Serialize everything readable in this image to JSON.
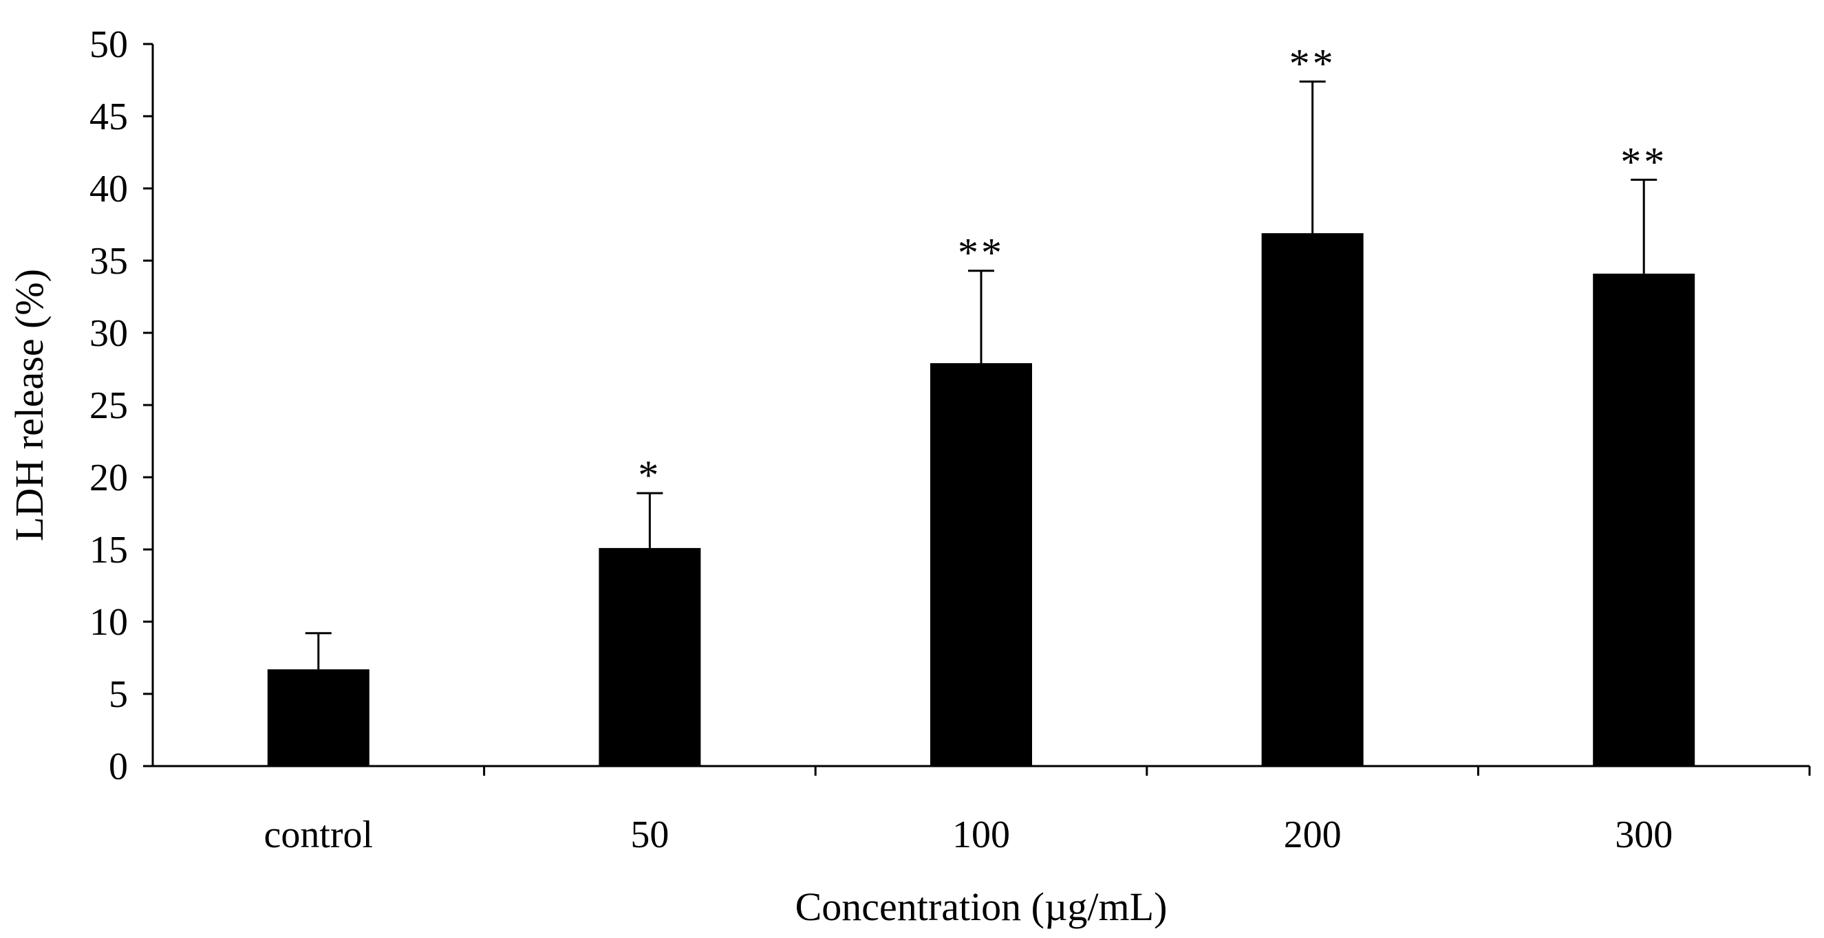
{
  "chart_data": {
    "type": "bar",
    "title": "",
    "xlabel": "Concentration (µg/mL)",
    "ylabel": "LDH release (%)",
    "categories": [
      "control",
      "50",
      "100",
      "200",
      "300"
    ],
    "values": [
      6.7,
      15.1,
      27.9,
      36.9,
      34.1
    ],
    "errors": [
      2.5,
      3.8,
      6.4,
      10.5,
      6.5
    ],
    "significance": [
      "",
      "*",
      "**",
      "**",
      "**"
    ],
    "ylim": [
      0,
      50
    ],
    "ytick_step": 5,
    "yticks": [
      "0",
      "5",
      "10",
      "15",
      "20",
      "25",
      "30",
      "35",
      "40",
      "45",
      "50"
    ],
    "grid": false,
    "legend": "none",
    "bar_color": "#000000"
  }
}
